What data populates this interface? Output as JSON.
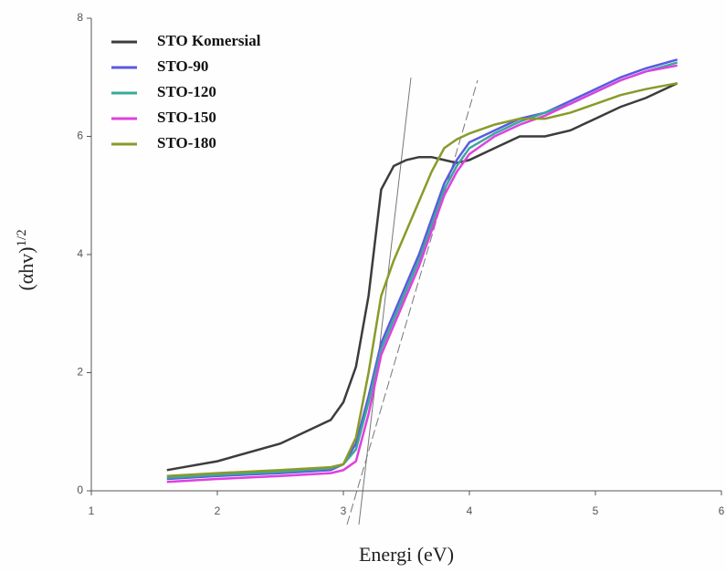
{
  "chart_data": {
    "type": "line",
    "xlabel": "Energi (eV)",
    "ylabel": "(αhv)",
    "ylabel_sup": "1/2",
    "x": [
      1.6,
      2.0,
      2.5,
      2.9,
      3.0,
      3.1,
      3.2,
      3.3,
      3.4,
      3.5,
      3.6,
      3.7,
      3.8,
      3.9,
      4.0,
      4.2,
      4.4,
      4.6,
      4.8,
      5.0,
      5.2,
      5.4,
      5.65
    ],
    "series": [
      {
        "name": "STO Komersial",
        "color": "#3c3c3c",
        "values": [
          0.35,
          0.5,
          0.8,
          1.2,
          1.5,
          2.1,
          3.3,
          5.1,
          5.5,
          5.6,
          5.65,
          5.65,
          5.6,
          5.55,
          5.6,
          5.8,
          6.0,
          6.0,
          6.1,
          6.3,
          6.5,
          6.65,
          6.9
        ]
      },
      {
        "name": "STO-90",
        "color": "#5a5ae0",
        "values": [
          0.2,
          0.25,
          0.3,
          0.35,
          0.45,
          0.8,
          1.6,
          2.5,
          3.0,
          3.5,
          4.0,
          4.6,
          5.2,
          5.6,
          5.9,
          6.1,
          6.3,
          6.4,
          6.6,
          6.8,
          7.0,
          7.15,
          7.3
        ]
      },
      {
        "name": "STO-120",
        "color": "#3aa89a",
        "values": [
          0.22,
          0.27,
          0.32,
          0.38,
          0.45,
          0.7,
          1.5,
          2.4,
          2.9,
          3.4,
          3.9,
          4.5,
          5.1,
          5.5,
          5.8,
          6.05,
          6.25,
          6.4,
          6.55,
          6.75,
          6.95,
          7.1,
          7.25
        ]
      },
      {
        "name": "STO-150",
        "color": "#e040e0",
        "values": [
          0.15,
          0.2,
          0.25,
          0.3,
          0.35,
          0.5,
          1.3,
          2.3,
          2.8,
          3.3,
          3.8,
          4.4,
          5.0,
          5.4,
          5.7,
          6.0,
          6.2,
          6.35,
          6.55,
          6.75,
          6.95,
          7.1,
          7.2
        ]
      },
      {
        "name": "STO-180",
        "color": "#8a9a2a",
        "values": [
          0.25,
          0.3,
          0.35,
          0.4,
          0.45,
          0.9,
          2.0,
          3.3,
          3.9,
          4.4,
          4.9,
          5.4,
          5.8,
          5.95,
          6.05,
          6.2,
          6.3,
          6.3,
          6.4,
          6.55,
          6.7,
          6.8,
          6.9
        ]
      }
    ],
    "xlim": [
      1,
      6
    ],
    "xticks": [
      1,
      2,
      3,
      4,
      5,
      6
    ],
    "ylim": [
      0,
      8
    ],
    "yticks": [
      0,
      2,
      4,
      6,
      8
    ],
    "legend": "upper left"
  }
}
